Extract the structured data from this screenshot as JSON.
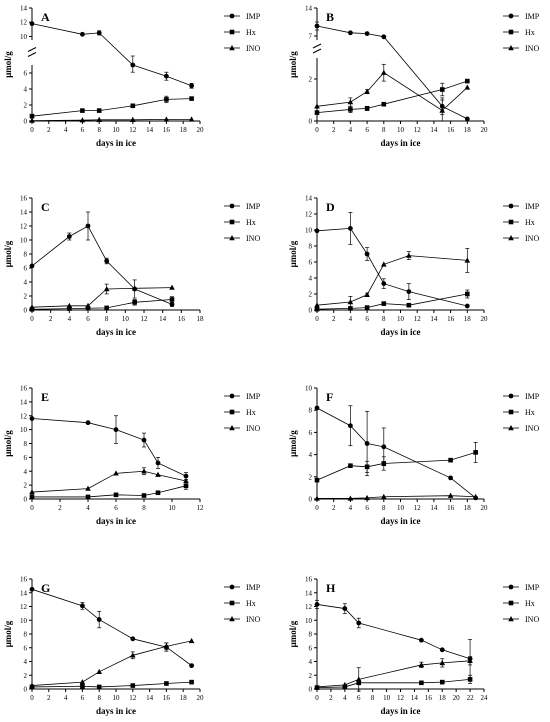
{
  "chart_data": [
    {
      "panel": "A",
      "type": "line",
      "xlabel": "days in ice",
      "ylabel": "μmol/g",
      "xlim": [
        0,
        20
      ],
      "xticks": [
        0,
        2,
        4,
        6,
        8,
        10,
        12,
        14,
        16,
        18,
        20
      ],
      "y_broken": true,
      "ylim_lower": [
        0,
        7
      ],
      "yticks_lower": [
        0,
        2,
        4,
        6
      ],
      "ylim_upper": [
        9.5,
        14
      ],
      "yticks_upper": [
        10,
        12,
        14
      ],
      "legend": [
        "IMP",
        "Hx",
        "INO"
      ],
      "series": [
        {
          "name": "IMP",
          "marker": "circle",
          "x": [
            0,
            6,
            8,
            12,
            16,
            19
          ],
          "y": [
            11.8,
            10.3,
            10.5,
            7.0,
            5.6,
            4.4
          ],
          "err": [
            0,
            0,
            0.3,
            0.9,
            0.5,
            0.3
          ]
        },
        {
          "name": "Hx",
          "marker": "square",
          "x": [
            0,
            6,
            8,
            12,
            16,
            19
          ],
          "y": [
            0.6,
            1.3,
            1.3,
            1.9,
            2.7,
            2.8
          ],
          "err": [
            0,
            0.1,
            0.1,
            0.1,
            0.4,
            0.1
          ]
        },
        {
          "name": "INO",
          "marker": "triangle",
          "x": [
            0,
            6,
            8,
            12,
            16,
            19
          ],
          "y": [
            0.05,
            0.1,
            0.15,
            0.15,
            0.2,
            0.2
          ],
          "err": [
            0,
            0,
            0,
            0,
            0,
            0
          ]
        }
      ]
    },
    {
      "panel": "B",
      "type": "line",
      "xlabel": "days in ice",
      "ylabel": "μmol/g",
      "xlim": [
        0,
        20
      ],
      "xticks": [
        0,
        2,
        4,
        6,
        8,
        10,
        12,
        14,
        16,
        18,
        20
      ],
      "y_broken": true,
      "ylim_lower": [
        0,
        3
      ],
      "yticks_lower": [
        0,
        2
      ],
      "ylim_upper": [
        6,
        14
      ],
      "yticks_upper": [
        7,
        14
      ],
      "legend": [
        "IMP",
        "Hx",
        "INO"
      ],
      "series": [
        {
          "name": "IMP",
          "marker": "circle",
          "x": [
            0,
            4,
            6,
            8,
            15,
            18
          ],
          "y": [
            9.5,
            7.8,
            7.6,
            6.8,
            0.7,
            0.1
          ],
          "err": [
            1.0,
            0,
            0,
            0,
            0.4,
            0
          ]
        },
        {
          "name": "Hx",
          "marker": "square",
          "x": [
            0,
            4,
            6,
            8,
            15,
            18
          ],
          "y": [
            0.4,
            0.55,
            0.6,
            0.8,
            1.5,
            1.9
          ],
          "err": [
            0,
            0.15,
            0.1,
            0,
            0.3,
            0
          ]
        },
        {
          "name": "INO",
          "marker": "triangle",
          "x": [
            0,
            4,
            6,
            8,
            15,
            18
          ],
          "y": [
            0.7,
            0.9,
            1.4,
            2.3,
            0.5,
            1.6
          ],
          "err": [
            0,
            0.2,
            0.1,
            0.4,
            0.5,
            0
          ]
        }
      ]
    },
    {
      "panel": "C",
      "type": "line",
      "xlabel": "days in ice",
      "ylabel": "μmol/g",
      "xlim": [
        0,
        18
      ],
      "xticks": [
        0,
        2,
        4,
        6,
        8,
        10,
        12,
        14,
        16,
        18
      ],
      "ylim": [
        0,
        16
      ],
      "yticks": [
        0,
        2,
        4,
        6,
        8,
        10,
        12,
        14,
        16
      ],
      "legend": [
        "IMP",
        "Hx",
        "INO"
      ],
      "series": [
        {
          "name": "IMP",
          "marker": "circle",
          "x": [
            0,
            4,
            6,
            8,
            11,
            15
          ],
          "y": [
            6.3,
            10.5,
            12.0,
            7.0,
            3.0,
            0.8
          ],
          "err": [
            0,
            0.5,
            2.0,
            0.4,
            1.3,
            0.3
          ]
        },
        {
          "name": "Hx",
          "marker": "square",
          "x": [
            0,
            4,
            6,
            8,
            11,
            15
          ],
          "y": [
            0.1,
            0.2,
            0.25,
            0.3,
            1.1,
            1.5
          ],
          "err": [
            0,
            0,
            0,
            0,
            0.4,
            0.4
          ]
        },
        {
          "name": "INO",
          "marker": "triangle",
          "x": [
            0,
            4,
            6,
            8,
            11,
            15
          ],
          "y": [
            0.4,
            0.6,
            0.6,
            3.0,
            3.1,
            3.2
          ],
          "err": [
            0,
            0,
            0,
            0.7,
            0,
            0
          ]
        }
      ]
    },
    {
      "panel": "D",
      "type": "line",
      "xlabel": "days in ice",
      "ylabel": "μmol/g",
      "xlim": [
        0,
        20
      ],
      "xticks": [
        0,
        2,
        4,
        6,
        8,
        10,
        12,
        14,
        16,
        18,
        20
      ],
      "ylim": [
        0,
        14
      ],
      "yticks": [
        0,
        2,
        4,
        6,
        8,
        10,
        12,
        14
      ],
      "legend": [
        "IMP",
        "Hx",
        "INO"
      ],
      "series": [
        {
          "name": "IMP",
          "marker": "circle",
          "x": [
            0,
            4,
            6,
            8,
            11,
            18
          ],
          "y": [
            9.9,
            10.2,
            7.0,
            3.3,
            2.3,
            0.5
          ],
          "err": [
            0,
            2.0,
            0.8,
            0.6,
            1.0,
            0
          ]
        },
        {
          "name": "Hx",
          "marker": "square",
          "x": [
            0,
            4,
            6,
            8,
            11,
            18
          ],
          "y": [
            0.1,
            0.2,
            0.3,
            0.8,
            0.6,
            2.0
          ],
          "err": [
            0,
            0,
            0,
            0,
            0,
            0.5
          ]
        },
        {
          "name": "INO",
          "marker": "triangle",
          "x": [
            0,
            4,
            6,
            8,
            11,
            18
          ],
          "y": [
            0.6,
            1.0,
            1.9,
            5.7,
            6.8,
            6.2
          ],
          "err": [
            0,
            0.7,
            0.2,
            0,
            0.5,
            1.5
          ]
        }
      ]
    },
    {
      "panel": "E",
      "type": "line",
      "xlabel": "days in ice",
      "ylabel": "μmol/g",
      "xlim": [
        0,
        12
      ],
      "xticks": [
        0,
        2,
        4,
        6,
        8,
        10,
        12
      ],
      "ylim": [
        0,
        16
      ],
      "yticks": [
        0,
        2,
        4,
        6,
        8,
        10,
        12,
        14,
        16
      ],
      "legend": [
        "IMP",
        "Hx",
        "INO"
      ],
      "series": [
        {
          "name": "IMP",
          "marker": "circle",
          "x": [
            0,
            4,
            6,
            8,
            9,
            11
          ],
          "y": [
            11.6,
            11.0,
            10.0,
            8.5,
            5.2,
            3.3
          ],
          "err": [
            0,
            0,
            2.0,
            1.0,
            0.8,
            0.5
          ]
        },
        {
          "name": "Hx",
          "marker": "square",
          "x": [
            0,
            4,
            6,
            8,
            9,
            11
          ],
          "y": [
            0.3,
            0.3,
            0.6,
            0.5,
            0.9,
            1.9
          ],
          "err": [
            0,
            0,
            0,
            0,
            0,
            0.5
          ]
        },
        {
          "name": "INO",
          "marker": "triangle",
          "x": [
            0,
            4,
            6,
            8,
            9,
            11
          ],
          "y": [
            1.0,
            1.5,
            3.7,
            4.0,
            3.5,
            2.6
          ],
          "err": [
            0,
            0,
            0,
            0.5,
            0,
            0
          ]
        }
      ]
    },
    {
      "panel": "F",
      "type": "line",
      "xlabel": "days in ice",
      "ylabel": "μmol/g",
      "xlim": [
        0,
        20
      ],
      "xticks": [
        0,
        2,
        4,
        6,
        8,
        10,
        12,
        14,
        16,
        18,
        20
      ],
      "ylim": [
        0,
        10
      ],
      "yticks": [
        0,
        2,
        4,
        6,
        8,
        10
      ],
      "legend": [
        "IMP",
        "Hx",
        "INO"
      ],
      "series": [
        {
          "name": "IMP",
          "marker": "circle",
          "x": [
            0,
            4,
            6,
            8,
            16,
            19
          ],
          "y": [
            8.2,
            6.6,
            5.0,
            4.7,
            1.9,
            0.1
          ],
          "err": [
            0,
            1.8,
            2.9,
            1.7,
            0,
            0
          ]
        },
        {
          "name": "Hx",
          "marker": "square",
          "x": [
            0,
            4,
            6,
            8,
            16,
            19
          ],
          "y": [
            1.7,
            3.0,
            2.9,
            3.2,
            3.5,
            4.2
          ],
          "err": [
            0,
            0,
            0.5,
            0.6,
            0,
            0.9
          ]
        },
        {
          "name": "INO",
          "marker": "triangle",
          "x": [
            0,
            4,
            6,
            8,
            16,
            19
          ],
          "y": [
            0.05,
            0.05,
            0.1,
            0.2,
            0.3,
            0.2
          ],
          "err": [
            0,
            0,
            0,
            0,
            0,
            0
          ]
        }
      ]
    },
    {
      "panel": "G",
      "type": "line",
      "xlabel": "days in ice",
      "ylabel": "μmol/g",
      "xlim": [
        0,
        20
      ],
      "xticks": [
        0,
        2,
        4,
        6,
        8,
        10,
        12,
        14,
        16,
        18,
        20
      ],
      "ylim": [
        0,
        16
      ],
      "yticks": [
        0,
        2,
        4,
        6,
        8,
        10,
        12,
        14,
        16
      ],
      "legend": [
        "IMP",
        "Hx",
        "INO"
      ],
      "series": [
        {
          "name": "IMP",
          "marker": "circle",
          "x": [
            0,
            6,
            8,
            12,
            16,
            19
          ],
          "y": [
            14.5,
            12.1,
            10.1,
            7.3,
            6.1,
            3.4
          ],
          "err": [
            0,
            0.5,
            1.2,
            0,
            0.6,
            0
          ]
        },
        {
          "name": "Hx",
          "marker": "square",
          "x": [
            0,
            6,
            8,
            12,
            16,
            19
          ],
          "y": [
            0.3,
            0.4,
            0.3,
            0.5,
            0.8,
            1.0
          ],
          "err": [
            0,
            0,
            0,
            0,
            0,
            0
          ]
        },
        {
          "name": "INO",
          "marker": "triangle",
          "x": [
            0,
            6,
            8,
            12,
            16,
            19
          ],
          "y": [
            0.5,
            1.0,
            2.5,
            4.9,
            6.2,
            7.0
          ],
          "err": [
            0,
            0,
            0,
            0.5,
            0.5,
            0
          ]
        }
      ]
    },
    {
      "panel": "H",
      "type": "line",
      "xlabel": "days in ice",
      "ylabel": "μmol/g",
      "xlim": [
        0,
        24
      ],
      "xticks": [
        0,
        2,
        4,
        6,
        8,
        10,
        12,
        14,
        16,
        18,
        20,
        22,
        24
      ],
      "ylim": [
        0,
        16
      ],
      "yticks": [
        0,
        2,
        4,
        6,
        8,
        10,
        12,
        14,
        16
      ],
      "legend": [
        "IMP",
        "Hx",
        "INO"
      ],
      "series": [
        {
          "name": "IMP",
          "marker": "circle",
          "x": [
            0,
            4,
            6,
            15,
            18,
            22
          ],
          "y": [
            12.3,
            11.7,
            9.6,
            7.1,
            5.7,
            4.4
          ],
          "err": [
            0.6,
            0.7,
            0.7,
            0,
            0,
            2.8
          ]
        },
        {
          "name": "Hx",
          "marker": "square",
          "x": [
            0,
            4,
            6,
            15,
            18,
            22
          ],
          "y": [
            0.2,
            0.3,
            0.9,
            0.9,
            1.0,
            1.4
          ],
          "err": [
            0,
            0,
            0,
            0,
            0,
            0.6
          ]
        },
        {
          "name": "INO",
          "marker": "triangle",
          "x": [
            0,
            4,
            6,
            15,
            18,
            22
          ],
          "y": [
            0.3,
            0.6,
            1.4,
            3.5,
            3.8,
            4.1
          ],
          "err": [
            0,
            0,
            1.7,
            0.4,
            0.6,
            0.6
          ]
        }
      ]
    }
  ]
}
